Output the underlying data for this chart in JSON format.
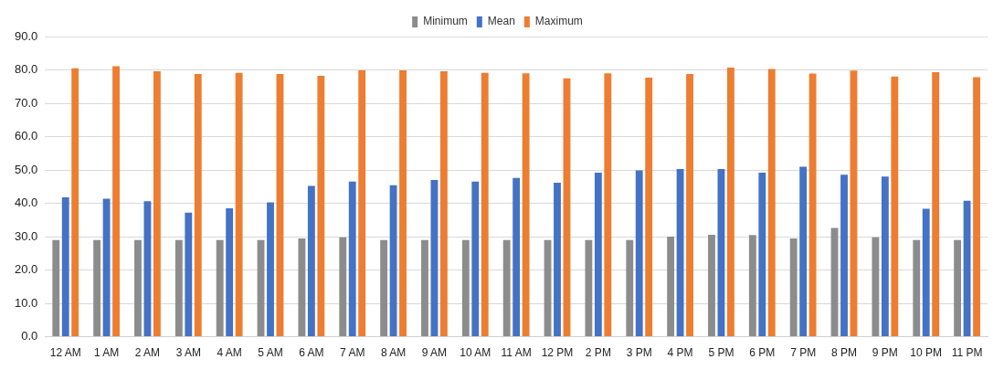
{
  "chart_data": {
    "type": "bar",
    "categories": [
      "12 AM",
      "1 AM",
      "2 AM",
      "3 AM",
      "4 AM",
      "5 AM",
      "6 AM",
      "7 AM",
      "8 AM",
      "9 AM",
      "10 AM",
      "11 AM",
      "12 PM",
      "2 PM",
      "3 PM",
      "4 PM",
      "5 PM",
      "6 PM",
      "7 PM",
      "8 PM",
      "9 PM",
      "10 PM",
      "11 PM"
    ],
    "series": [
      {
        "name": "Minimum",
        "color": "#8c8c8c",
        "values": [
          29,
          29,
          29,
          29,
          29,
          29,
          29.5,
          29.8,
          29,
          29,
          29,
          29,
          29,
          29,
          29,
          30,
          30.6,
          30.5,
          29.5,
          32.6,
          29.8,
          29,
          29
        ]
      },
      {
        "name": "Mean",
        "color": "#4472c4",
        "values": [
          41.8,
          41.4,
          40.6,
          37.2,
          38.5,
          40.3,
          45.2,
          46.5,
          45.4,
          47,
          46.5,
          47.6,
          46.2,
          49.2,
          49.9,
          50.3,
          50.3,
          49.2,
          51,
          48.6,
          48,
          38.4,
          40.8
        ]
      },
      {
        "name": "Maximum",
        "color": "#ed7d31",
        "values": [
          80.5,
          81.1,
          79.6,
          78.8,
          79.1,
          78.8,
          78.2,
          79.9,
          79.9,
          79.6,
          79.1,
          79,
          77.5,
          79,
          77.7,
          78.8,
          80.7,
          80.3,
          78.9,
          79.8,
          78,
          79.3,
          77.8
        ]
      }
    ],
    "ylim": [
      0,
      90
    ],
    "yticks": [
      {
        "value": 0,
        "label": "0.0"
      },
      {
        "value": 10,
        "label": "10.0"
      },
      {
        "value": 20,
        "label": "20.0"
      },
      {
        "value": 30,
        "label": "30.0"
      },
      {
        "value": 40,
        "label": "40.0"
      },
      {
        "value": 50,
        "label": "50.0"
      },
      {
        "value": 60,
        "label": "60.0"
      },
      {
        "value": 70,
        "label": "70.0"
      },
      {
        "value": 80,
        "label": "80.0"
      },
      {
        "value": 90,
        "label": "90.0"
      }
    ],
    "grid": "y",
    "legend": "top"
  }
}
